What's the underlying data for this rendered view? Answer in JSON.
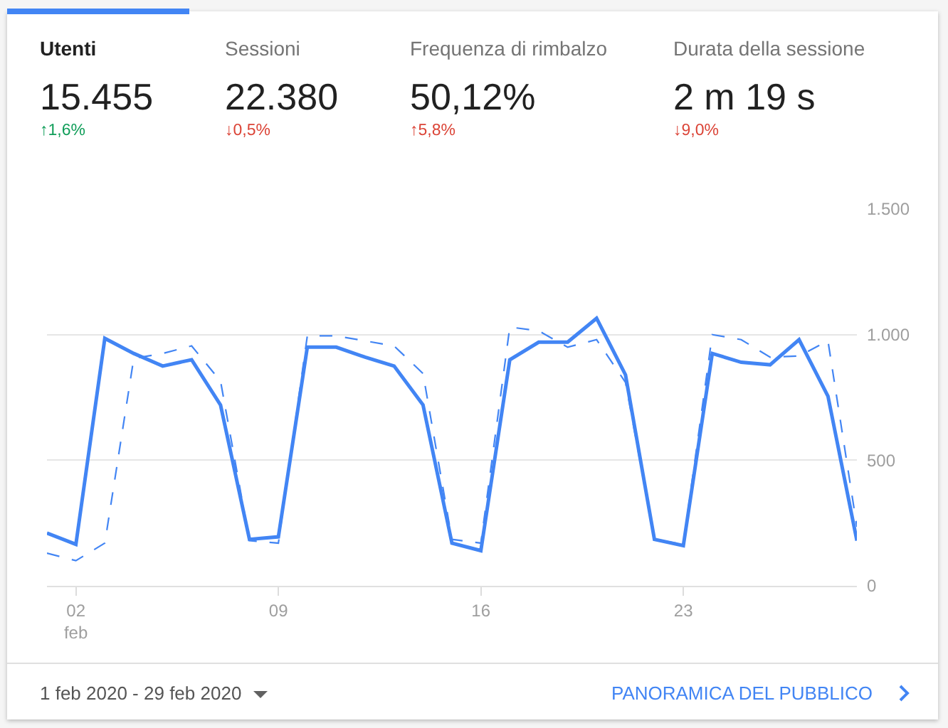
{
  "chart_data": [
    {
      "type": "other",
      "annotations": [
        "Utenti",
        "15.455",
        "↑1,6%",
        "Sessioni",
        "22.380",
        "↓0,5%",
        "Frequenza di rimbalzo",
        "50,12%",
        "↑5,8%",
        "Durata della sessione",
        "2 m 19 s",
        "↓9,0%"
      ],
      "colors": [
        "#0f9d58",
        "#db4437",
        "#db4437",
        "#db4437"
      ]
    },
    {
      "type": "line",
      "x": [
        "2020-02-01",
        "2020-02-02",
        "2020-02-03",
        "2020-02-04",
        "2020-02-05",
        "2020-02-06",
        "2020-02-07",
        "2020-02-08",
        "2020-02-09",
        "2020-02-10",
        "2020-02-11",
        "2020-02-12",
        "2020-02-13",
        "2020-02-14",
        "2020-02-15",
        "2020-02-16",
        "2020-02-17",
        "2020-02-18",
        "2020-02-19",
        "2020-02-20",
        "2020-02-21",
        "2020-02-22",
        "2020-02-23",
        "2020-02-24",
        "2020-02-25",
        "2020-02-26",
        "2020-02-27",
        "2020-02-28",
        "2020-02-29"
      ],
      "series": [
        {
          "color": "#4285f4",
          "line_style": "solid",
          "values": [
            210,
            165,
            985,
            925,
            875,
            900,
            720,
            185,
            195,
            950,
            950,
            910,
            875,
            720,
            170,
            140,
            900,
            970,
            970,
            1065,
            840,
            185,
            160,
            925,
            890,
            880,
            980,
            755,
            180
          ]
        },
        {
          "color": "#4285f4",
          "line_style": "dashed",
          "values": [
            130,
            100,
            170,
            905,
            925,
            955,
            815,
            180,
            170,
            995,
            995,
            975,
            955,
            845,
            185,
            170,
            1030,
            1015,
            950,
            980,
            810,
            185,
            165,
            1000,
            980,
            910,
            915,
            975,
            235
          ]
        }
      ],
      "xlim": [
        "2020-02-01",
        "2020-02-29"
      ],
      "xticks": [
        {
          "value": "2020-02-02",
          "label": "02\nfeb"
        },
        {
          "value": "2020-02-09",
          "label": "09"
        },
        {
          "value": "2020-02-16",
          "label": "16"
        },
        {
          "value": "2020-02-23",
          "label": "23"
        }
      ],
      "ylim": [
        0,
        1500
      ],
      "yticks": [
        0,
        500,
        {
          "value": 1000,
          "label": "1.000"
        },
        {
          "value": 1500,
          "label": "1.500"
        }
      ],
      "grid": "y",
      "legend": false,
      "annotations": [
        "1 feb 2020 - 29 feb 2020",
        "PANORAMICA DEL PUBBLICO"
      ]
    }
  ]
}
